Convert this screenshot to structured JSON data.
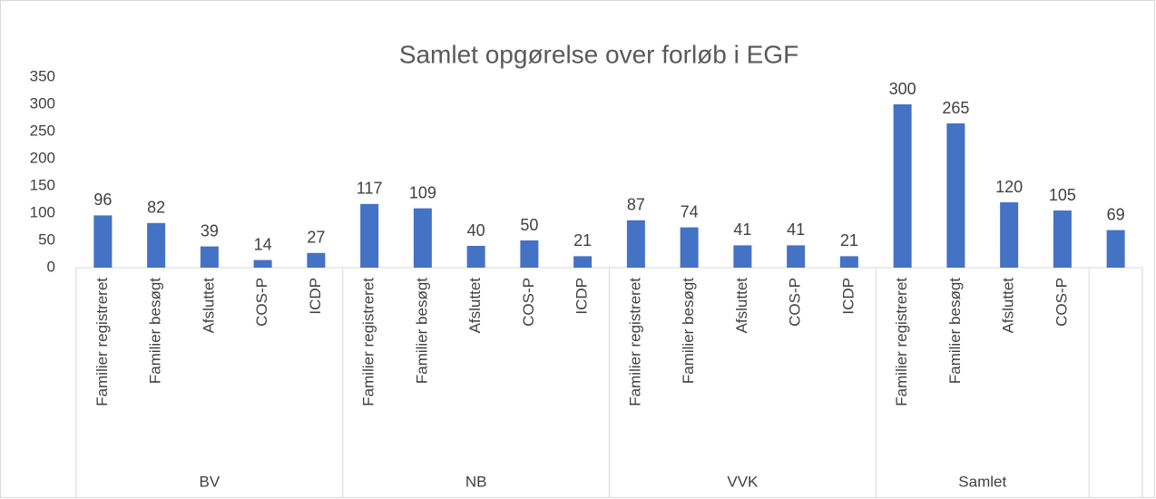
{
  "chart_data": {
    "type": "bar",
    "title": "Samlet opgørelse over forløb i EGF",
    "categories": [
      "Familier registreret",
      "Familier besøgt",
      "Afsluttet",
      "COS-P",
      "ICDP",
      "Familier registreret",
      "Familier besøgt",
      "Afsluttet",
      "COS-P",
      "ICDP",
      "Familier registreret",
      "Familier besøgt",
      "Afsluttet",
      "COS-P",
      "ICDP",
      "Familier registreret",
      "Familier besøgt",
      "Afsluttet",
      "COS-P",
      null
    ],
    "values": [
      96,
      82,
      39,
      14,
      27,
      117,
      109,
      40,
      50,
      21,
      87,
      74,
      41,
      41,
      21,
      300,
      265,
      120,
      105,
      69
    ],
    "groups": [
      {
        "name": "BV",
        "size": 5
      },
      {
        "name": "NB",
        "size": 5
      },
      {
        "name": "VVK",
        "size": 5
      },
      {
        "name": "Samlet",
        "size": 4
      },
      {
        "name": null,
        "size": 1
      }
    ],
    "color": "#4472c4",
    "ylim": [
      0,
      350
    ],
    "yticks": [
      0,
      50,
      100,
      150,
      200,
      250,
      300,
      350
    ],
    "grid": false
  }
}
